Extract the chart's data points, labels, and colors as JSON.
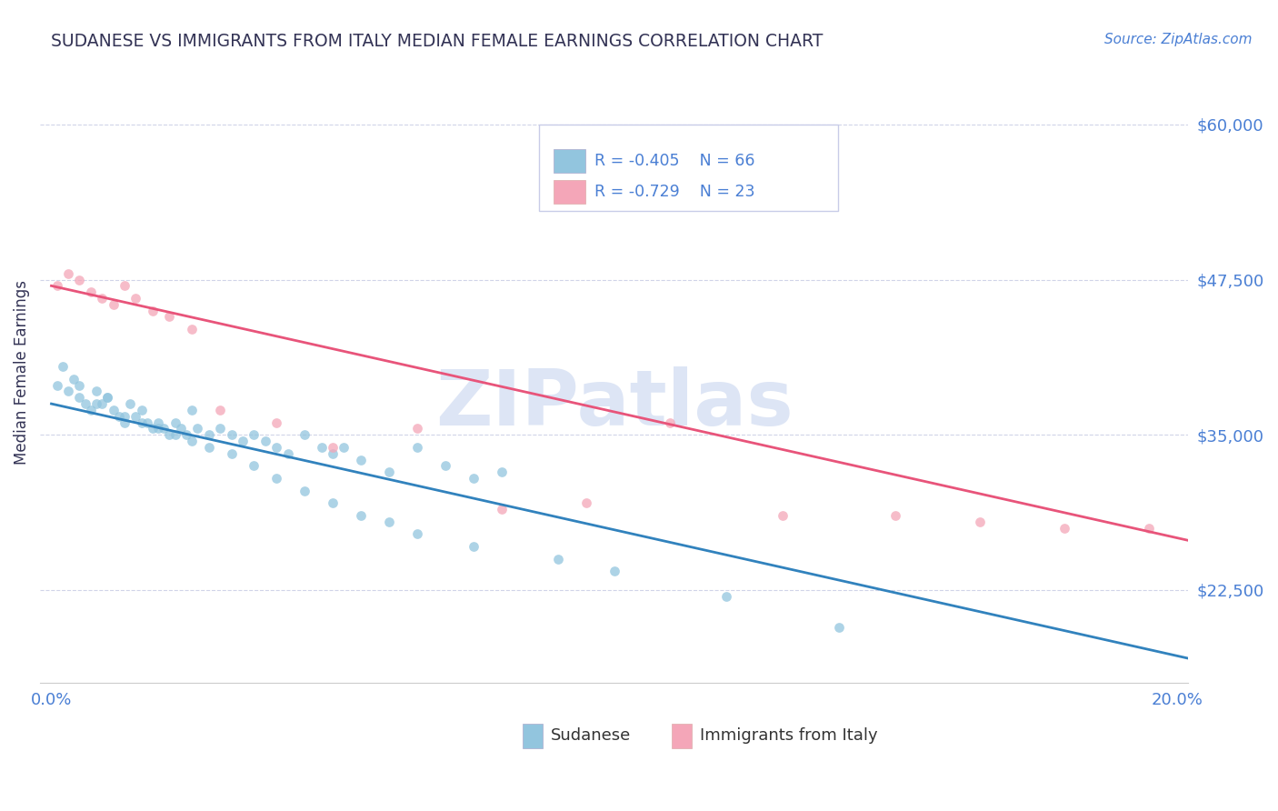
{
  "title": "SUDANESE VS IMMIGRANTS FROM ITALY MEDIAN FEMALE EARNINGS CORRELATION CHART",
  "source": "Source: ZipAtlas.com",
  "ylabel": "Median Female Earnings",
  "xlim": [
    -0.002,
    0.202
  ],
  "ylim": [
    15000,
    65000
  ],
  "yticks": [
    22500,
    35000,
    47500,
    60000
  ],
  "ytick_labels": [
    "$22,500",
    "$35,000",
    "$47,500",
    "$60,000"
  ],
  "xticks": [
    0.0,
    0.025,
    0.05,
    0.075,
    0.1,
    0.125,
    0.15,
    0.175,
    0.2
  ],
  "xtick_edge_labels": {
    "0": "0.0%",
    "8": "20.0%"
  },
  "blue_color": "#92c5de",
  "pink_color": "#f4a6b8",
  "blue_line_color": "#3182bd",
  "pink_line_color": "#e8547a",
  "title_color": "#333355",
  "axis_label_color": "#333355",
  "tick_color": "#4a7fd4",
  "ylabel_color": "#333355",
  "watermark": "ZIPatlas",
  "watermark_color": "#dde5f5",
  "blue_scatter_x": [
    0.001,
    0.002,
    0.003,
    0.004,
    0.005,
    0.006,
    0.007,
    0.008,
    0.009,
    0.01,
    0.011,
    0.012,
    0.013,
    0.014,
    0.015,
    0.016,
    0.017,
    0.018,
    0.019,
    0.02,
    0.021,
    0.022,
    0.023,
    0.024,
    0.025,
    0.026,
    0.028,
    0.03,
    0.032,
    0.034,
    0.036,
    0.038,
    0.04,
    0.042,
    0.045,
    0.048,
    0.05,
    0.052,
    0.055,
    0.06,
    0.065,
    0.07,
    0.075,
    0.08,
    0.005,
    0.008,
    0.01,
    0.013,
    0.016,
    0.019,
    0.022,
    0.025,
    0.028,
    0.032,
    0.036,
    0.04,
    0.045,
    0.05,
    0.055,
    0.06,
    0.065,
    0.075,
    0.09,
    0.1,
    0.12,
    0.14
  ],
  "blue_scatter_y": [
    39000,
    40500,
    38500,
    39500,
    38000,
    37500,
    37000,
    38500,
    37500,
    38000,
    37000,
    36500,
    36000,
    37500,
    36500,
    37000,
    36000,
    35500,
    36000,
    35500,
    35000,
    36000,
    35500,
    35000,
    37000,
    35500,
    35000,
    35500,
    35000,
    34500,
    35000,
    34500,
    34000,
    33500,
    35000,
    34000,
    33500,
    34000,
    33000,
    32000,
    34000,
    32500,
    31500,
    32000,
    39000,
    37500,
    38000,
    36500,
    36000,
    35500,
    35000,
    34500,
    34000,
    33500,
    32500,
    31500,
    30500,
    29500,
    28500,
    28000,
    27000,
    26000,
    25000,
    24000,
    22000,
    19500
  ],
  "pink_scatter_x": [
    0.001,
    0.003,
    0.005,
    0.007,
    0.009,
    0.011,
    0.013,
    0.015,
    0.018,
    0.021,
    0.025,
    0.03,
    0.04,
    0.05,
    0.065,
    0.08,
    0.095,
    0.11,
    0.13,
    0.15,
    0.165,
    0.18,
    0.195
  ],
  "pink_scatter_y": [
    47000,
    48000,
    47500,
    46500,
    46000,
    45500,
    47000,
    46000,
    45000,
    44500,
    43500,
    37000,
    36000,
    34000,
    35500,
    29000,
    29500,
    36000,
    28500,
    28500,
    28000,
    27500,
    27500
  ],
  "blue_line_x": [
    0.0,
    0.202
  ],
  "blue_line_y": [
    37500,
    17000
  ],
  "pink_line_x": [
    0.0,
    0.202
  ],
  "pink_line_y": [
    47000,
    26500
  ],
  "legend_r_blue": "R = -0.405",
  "legend_n_blue": "N = 66",
  "legend_r_pink": "R = -0.729",
  "legend_n_pink": "N = 23",
  "legend_label_blue": "Sudanese",
  "legend_label_pink": "Immigrants from Italy",
  "grid_color": "#d0d4e8",
  "bg_color": "#ffffff"
}
